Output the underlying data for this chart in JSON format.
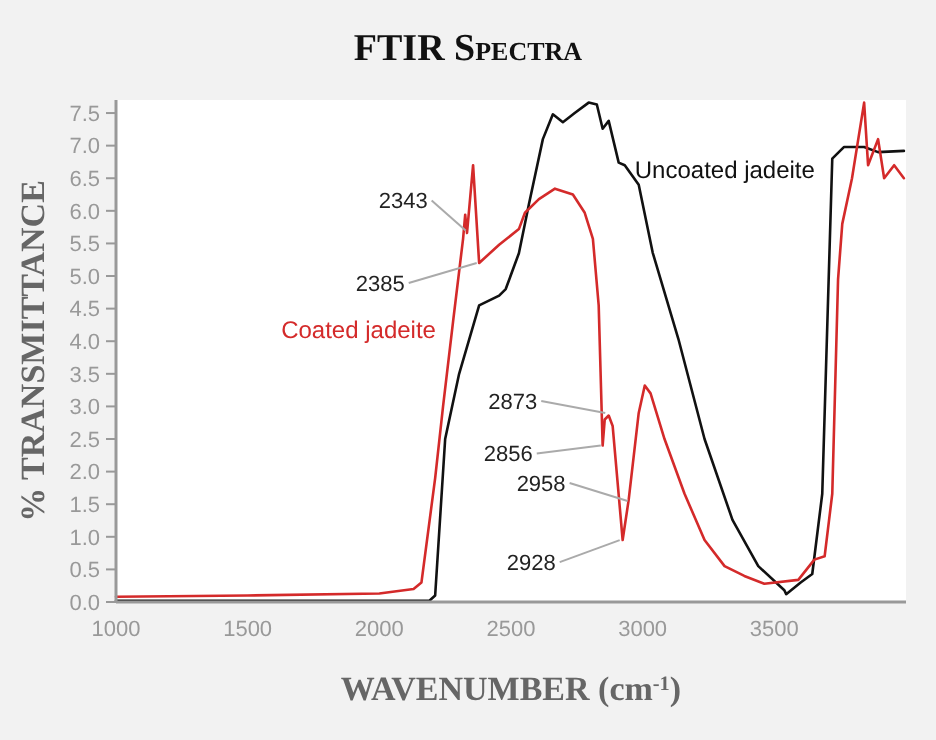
{
  "chart_data": {
    "type": "line",
    "title": "FTIR Spectra",
    "xlabel": "WAVENUMBER (cm$^{-1}$)",
    "ylabel": "% TRANSMITTANCE",
    "xlim": [
      1000,
      4000
    ],
    "ylim": [
      0,
      7.7
    ],
    "xticks": [
      1000,
      1500,
      2000,
      2500,
      3000,
      3500
    ],
    "yticks": [
      {
        "value": 0,
        "label": "0.0"
      },
      0.5,
      {
        "value": 1,
        "label": "1.0"
      },
      1.5,
      {
        "value": 2,
        "label": "2.0"
      },
      2.5,
      {
        "value": 3,
        "label": "3.0"
      },
      3.5,
      {
        "value": 4,
        "label": "4.0"
      },
      4.5,
      {
        "value": 5,
        "label": "5.0"
      },
      5.5,
      {
        "value": 6,
        "label": "6.0"
      },
      6.5,
      {
        "value": 7,
        "label": "7.0"
      },
      7.5
    ],
    "grid": false,
    "legend": false,
    "marker": "none",
    "line_style": "solid",
    "series": [
      {
        "name": "Uncoated jadeite",
        "color": "#111111",
        "x": [
          1000,
          1500,
          2000,
          2190,
          2212,
          2250,
          2303,
          2379,
          2455,
          2480,
          2530,
          2568,
          2621,
          2659,
          2697,
          2742,
          2795,
          2826,
          2848,
          2871,
          2909,
          2932,
          2985,
          3038,
          3136,
          3235,
          3341,
          3439,
          3538,
          3545,
          3600,
          3644,
          3682,
          3720,
          3765,
          3841,
          3894,
          3992
        ],
        "values": [
          0.02,
          0.02,
          0.02,
          0.02,
          0.1,
          2.5,
          3.5,
          4.55,
          4.7,
          4.8,
          5.35,
          6.1,
          7.1,
          7.48,
          7.36,
          7.5,
          7.66,
          7.63,
          7.26,
          7.38,
          6.74,
          6.7,
          6.4,
          5.36,
          4.03,
          2.5,
          1.26,
          0.55,
          0.18,
          0.12,
          0.3,
          0.43,
          1.66,
          6.8,
          6.98,
          6.98,
          6.9,
          6.92
        ]
      },
      {
        "name": "Coated jadeite",
        "color": "#d42a2a",
        "x": [
          1000,
          1500,
          2000,
          2130,
          2160,
          2212,
          2242,
          2280,
          2318,
          2326,
          2333,
          2356,
          2379,
          2455,
          2530,
          2553,
          2606,
          2667,
          2735,
          2780,
          2811,
          2833,
          2848,
          2856,
          2871,
          2886,
          2924,
          2947,
          2985,
          3008,
          3030,
          3083,
          3159,
          3235,
          3311,
          3386,
          3462,
          3591,
          3652,
          3691,
          3720,
          3742,
          3758,
          3795,
          3841,
          3856,
          3894,
          3917,
          3955,
          3992
        ],
        "values": [
          0.08,
          0.1,
          0.13,
          0.2,
          0.3,
          1.9,
          3.0,
          4.3,
          5.57,
          5.94,
          5.66,
          6.7,
          5.2,
          5.48,
          5.72,
          5.97,
          6.18,
          6.34,
          6.25,
          5.97,
          5.57,
          4.55,
          2.4,
          2.8,
          2.86,
          2.7,
          0.95,
          1.57,
          2.9,
          3.32,
          3.2,
          2.5,
          1.66,
          0.95,
          0.55,
          0.4,
          0.28,
          0.34,
          0.65,
          0.7,
          1.66,
          4.95,
          5.8,
          6.5,
          7.66,
          6.7,
          7.1,
          6.5,
          6.7,
          6.5
        ]
      }
    ],
    "annotations": [
      {
        "text": "2343",
        "x": 2343,
        "y": 5.7
      },
      {
        "text": "2385",
        "x": 2385,
        "y": 5.2
      },
      {
        "text": "2873",
        "x": 2873,
        "y": 2.9
      },
      {
        "text": "2856",
        "x": 2856,
        "y": 2.4
      },
      {
        "text": "2958",
        "x": 2958,
        "y": 1.55
      },
      {
        "text": "2928",
        "x": 2928,
        "y": 0.95
      }
    ]
  }
}
